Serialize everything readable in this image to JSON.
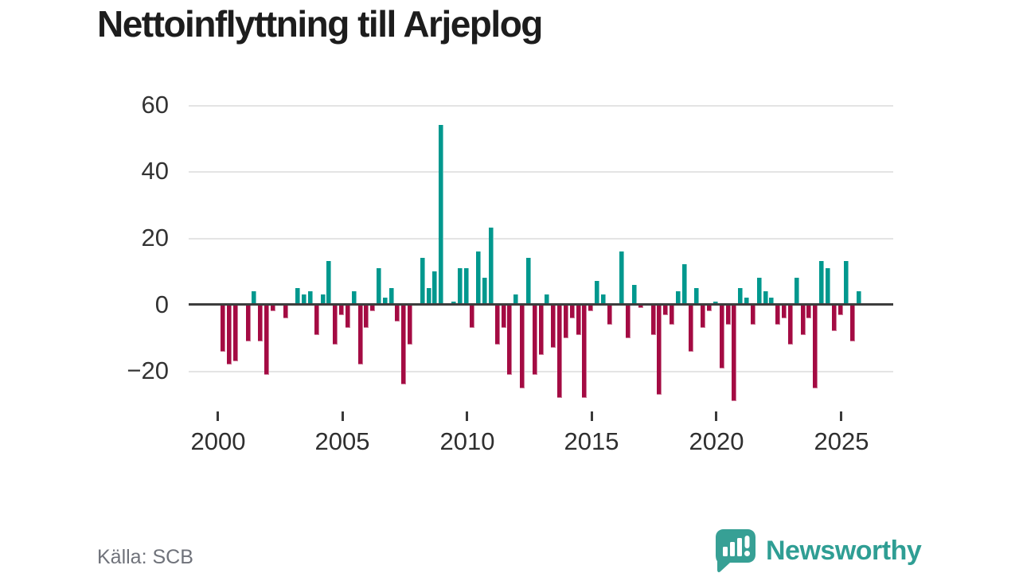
{
  "title": "Nettoinflyttning till Arjeplog",
  "footer": {
    "source": "Källa: SCB",
    "brand": "Newsworthy"
  },
  "colors": {
    "positive_bar": "#00988e",
    "negative_bar": "#a40b43",
    "grid": "#e4e4e4",
    "zero_line": "#3d3d3d",
    "axis_text": "#333333",
    "source_text": "#6f727a",
    "brand_teal": "#2f9e94"
  },
  "chart_data": {
    "type": "bar",
    "title": "Nettoinflyttning till Arjeplog",
    "frequency": "quarterly",
    "start_period": "2000Q1",
    "end_period": "2025Q3",
    "grid": "horizontal",
    "legend": "none",
    "ylim": [
      -32,
      66
    ],
    "y_ticks": [
      60,
      40,
      20,
      0,
      -20
    ],
    "y_tick_labels": [
      "60",
      "40",
      "20",
      "0",
      "−20"
    ],
    "x_tick_years": [
      2000,
      2005,
      2010,
      2015,
      2020,
      2025
    ],
    "x_tick_labels": [
      "2000",
      "2005",
      "2010",
      "2015",
      "2020",
      "2025"
    ],
    "series": [
      {
        "name": "Nettoinflyttning",
        "values": [
          -14,
          -18,
          -17,
          0,
          -11,
          4,
          -11,
          -21,
          -2,
          0,
          -4,
          0,
          5,
          3,
          4,
          -9,
          3,
          13,
          -12,
          -3,
          -7,
          4,
          -18,
          -7,
          -2,
          11,
          2,
          5,
          -5,
          -24,
          -12,
          0,
          14,
          5,
          10,
          54,
          0,
          1,
          11,
          11,
          -7,
          16,
          8,
          23,
          -12,
          -7,
          -21,
          3,
          -25,
          14,
          -21,
          -15,
          3,
          -13,
          -28,
          -10,
          -4,
          -9,
          -28,
          -2,
          7,
          3,
          -6,
          0,
          16,
          -10,
          6,
          -1,
          0,
          -9,
          -27,
          -3,
          -6,
          4,
          12,
          -14,
          5,
          -7,
          -2,
          1,
          -19,
          -6,
          -29,
          5,
          2,
          -6,
          8,
          4,
          2,
          -6,
          -4,
          -12,
          8,
          -9,
          -4,
          -25,
          13,
          11,
          -8,
          -3,
          13,
          -11,
          4
        ]
      }
    ]
  }
}
